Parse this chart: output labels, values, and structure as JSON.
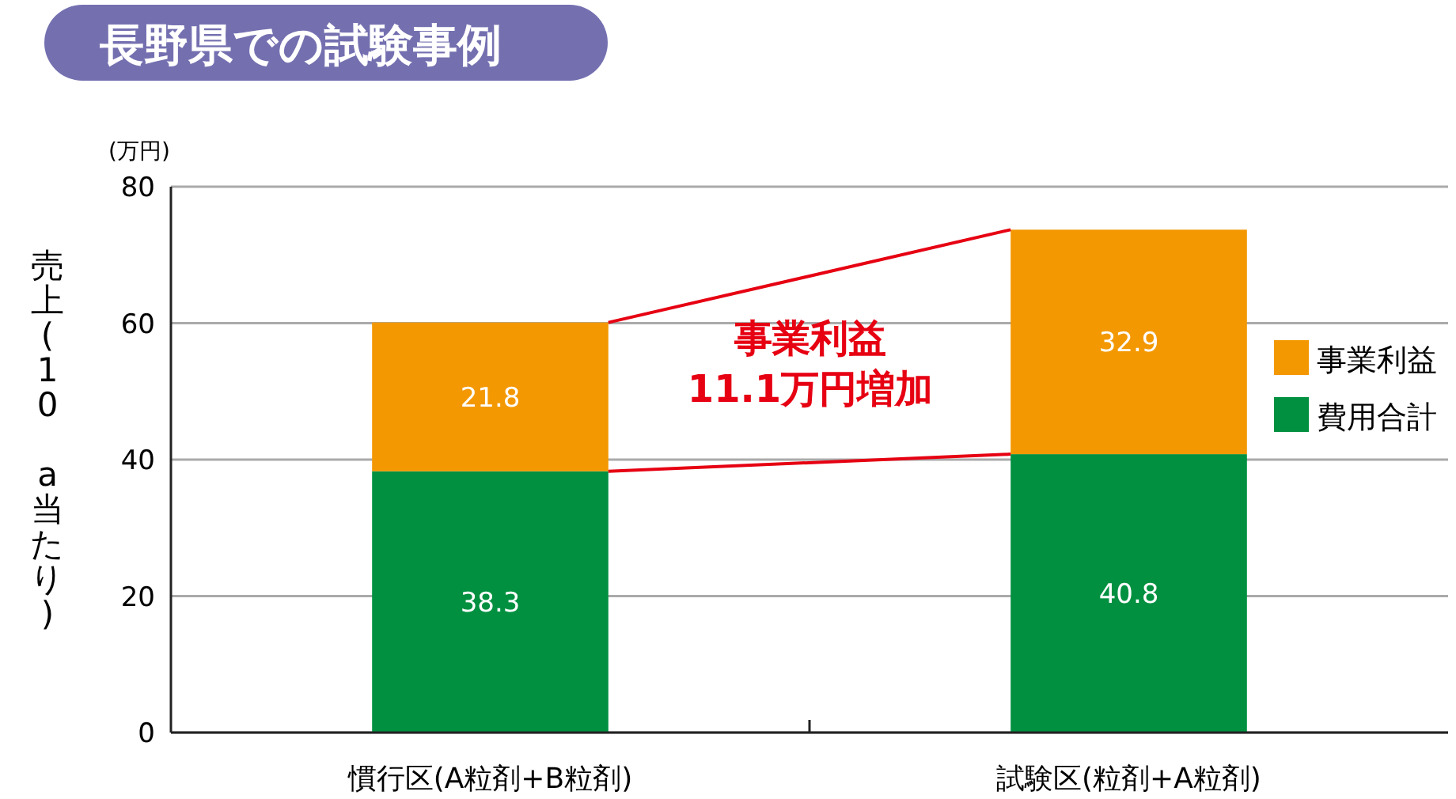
{
  "chart_data": {
    "type": "bar",
    "title": "長野県での試験事例",
    "ylabel": "売上(10 a当たり)",
    "annotations": [
      "(万円)",
      "事業利益\n11.1万円増加"
    ],
    "categories": [
      "慣行区(A粒剤+B粒剤)",
      "試験区(粒剤+A粒剤)"
    ],
    "stacked": true,
    "series": [
      {
        "name": "費用合計",
        "color": "#009040",
        "values": [
          38.3,
          40.8
        ]
      },
      {
        "name": "事業利益",
        "color": "#f39800",
        "values": [
          21.8,
          32.9
        ]
      }
    ],
    "ylim": [
      0,
      80
    ],
    "yticks": [
      0,
      20,
      40,
      60,
      80
    ],
    "grid": "y",
    "legend": "right",
    "data_labels": true
  }
}
